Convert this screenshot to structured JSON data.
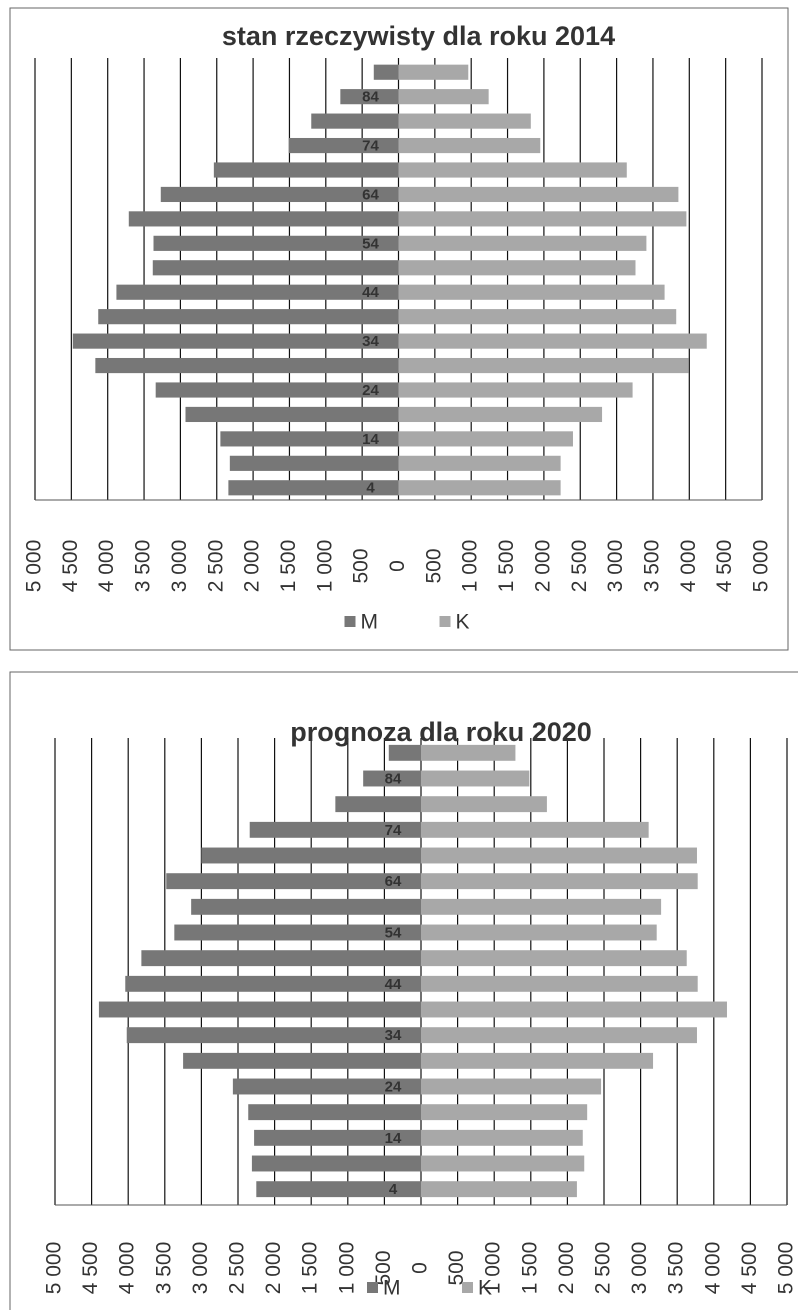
{
  "chart_data": [
    {
      "type": "bar",
      "orientation": "horizontal",
      "title": "stan rzeczywisty dla roku 2014",
      "categories": [
        "4",
        null,
        "14",
        null,
        "24",
        null,
        "34",
        null,
        "44",
        null,
        "54",
        null,
        "64",
        null,
        "74",
        null,
        "84",
        null
      ],
      "series": [
        {
          "name": "M",
          "color": "#777777",
          "values": [
            -2340,
            -2320,
            -2450,
            -2930,
            -3340,
            -4170,
            -4480,
            -4130,
            -3880,
            -3380,
            -3370,
            -3710,
            -3270,
            -2540,
            -1510,
            -1200,
            -800,
            -340
          ]
        },
        {
          "name": "K",
          "color": "#a8a8a8",
          "values": [
            2230,
            2230,
            2400,
            2800,
            3220,
            3990,
            4240,
            3820,
            3660,
            3260,
            3410,
            3960,
            3850,
            3140,
            1950,
            1820,
            1240,
            960
          ]
        }
      ],
      "xlim": [
        -5000,
        5000
      ],
      "xticks": [
        {
          "value": -5000,
          "label": "5 000"
        },
        {
          "value": -4500,
          "label": "4 500"
        },
        {
          "value": -4000,
          "label": "4 000"
        },
        {
          "value": -3500,
          "label": "3 500"
        },
        {
          "value": -3000,
          "label": "3 000"
        },
        {
          "value": -2500,
          "label": "2 500"
        },
        {
          "value": -2000,
          "label": "2 000"
        },
        {
          "value": -1500,
          "label": "1 500"
        },
        {
          "value": -1000,
          "label": "1 000"
        },
        {
          "value": -500,
          "label": "500"
        },
        0,
        500,
        {
          "value": 1000,
          "label": "1 000"
        },
        {
          "value": 1500,
          "label": "1 500"
        },
        {
          "value": 2000,
          "label": "2 000"
        },
        {
          "value": 2500,
          "label": "2 500"
        },
        {
          "value": 3000,
          "label": "3 000"
        },
        {
          "value": 3500,
          "label": "3 500"
        },
        {
          "value": 4000,
          "label": "4 000"
        },
        {
          "value": 4500,
          "label": "4 500"
        },
        {
          "value": 5000,
          "label": "5 000"
        }
      ],
      "grid": true,
      "legend": "bottom"
    },
    {
      "type": "bar",
      "orientation": "horizontal",
      "title": "prognoza dla roku 2020",
      "categories": [
        "4",
        null,
        "14",
        null,
        "24",
        null,
        "34",
        null,
        "44",
        null,
        "54",
        null,
        "64",
        null,
        "74",
        null,
        "84",
        null
      ],
      "series": [
        {
          "name": "M",
          "color": "#777777",
          "values": [
            -2250,
            -2310,
            -2280,
            -2360,
            -2570,
            -3250,
            -4020,
            -4400,
            -4040,
            -3820,
            -3370,
            -3140,
            -3480,
            -3000,
            -2340,
            -1170,
            -790,
            -440
          ]
        },
        {
          "name": "K",
          "color": "#a8a8a8",
          "values": [
            2130,
            2230,
            2210,
            2270,
            2460,
            3170,
            3770,
            4180,
            3780,
            3630,
            3220,
            3280,
            3780,
            3770,
            3110,
            1720,
            1480,
            1290
          ]
        }
      ],
      "xlim": [
        -5000,
        5000
      ],
      "xticks": [
        {
          "value": -5000,
          "label": "5 000"
        },
        {
          "value": -4500,
          "label": "4 500"
        },
        {
          "value": -4000,
          "label": "4 000"
        },
        {
          "value": -3500,
          "label": "3 500"
        },
        {
          "value": -3000,
          "label": "3 000"
        },
        {
          "value": -2500,
          "label": "2 500"
        },
        {
          "value": -2000,
          "label": "2 000"
        },
        {
          "value": -1500,
          "label": "1 500"
        },
        {
          "value": -1000,
          "label": "1 000"
        },
        {
          "value": -500,
          "label": "500"
        },
        0,
        500,
        {
          "value": 1000,
          "label": "1 000"
        },
        {
          "value": 1500,
          "label": "1 500"
        },
        {
          "value": 2000,
          "label": "2 000"
        },
        {
          "value": 2500,
          "label": "2 500"
        },
        {
          "value": 3000,
          "label": "3 000"
        },
        {
          "value": 3500,
          "label": "3 500"
        },
        {
          "value": 4000,
          "label": "4 000"
        },
        {
          "value": 4500,
          "label": "4 500"
        },
        {
          "value": 5000,
          "label": "5 000"
        }
      ],
      "grid": true,
      "legend": "bottom"
    }
  ]
}
